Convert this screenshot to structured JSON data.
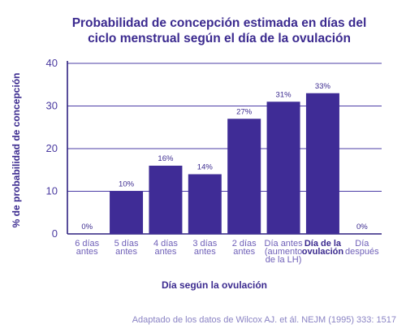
{
  "chart_data": {
    "type": "bar",
    "title_lines": [
      "Probabilidad de concepción estimada en días del",
      "ciclo menstrual según el día de la ovulación"
    ],
    "ylabel": "% de probabilidad de concepción",
    "xlabel": "Día según la ovulación",
    "ylim": [
      0,
      40
    ],
    "yticks": [
      0,
      10,
      20,
      30,
      40
    ],
    "grid": true,
    "categories": [
      [
        "6 días",
        "antes"
      ],
      [
        "5 días",
        "antes"
      ],
      [
        "4 días",
        "antes"
      ],
      [
        "3 días",
        "antes"
      ],
      [
        "2 días",
        "antes"
      ],
      [
        "Día antes",
        "(aumento",
        "de la LH)"
      ],
      [
        "Día de la",
        "ovulación"
      ],
      [
        "Día",
        "después"
      ]
    ],
    "values": [
      0,
      10,
      16,
      14,
      27,
      31,
      33,
      0
    ],
    "data_labels": [
      "0%",
      "10%",
      "16%",
      "14%",
      "27%",
      "31%",
      "33%",
      "0%"
    ],
    "highlight_category_index": 6,
    "bar_color": "#3f2c96",
    "source": "Adaptado de los datos de Wilcox AJ. et ál. NEJM (1995) 333: 1517"
  }
}
